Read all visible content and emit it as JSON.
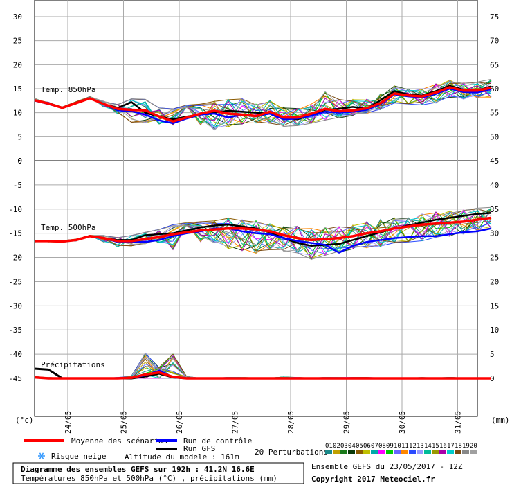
{
  "chart_data": {
    "type": "line",
    "title": "Diagramme des ensembles GEFS sur 192h : 41.2N 16.6E",
    "subtitle": "Températures 850hPa et 500hPa (°C) , précipitations (mm)",
    "x_labels": [
      "24/05",
      "25/05",
      "26/05",
      "27/05",
      "28/05",
      "29/05",
      "30/05",
      "31/05"
    ],
    "left_axis_label": "(°c)",
    "right_axis_label": "(mm)",
    "upper_panel": {
      "label": "Temp. 850hPa",
      "left_ticks": [
        "30",
        "25",
        "20",
        "15",
        "10",
        "5",
        "0"
      ],
      "right_ticks": [
        "75",
        "70",
        "65",
        "60",
        "55",
        "50"
      ],
      "ylim": [
        0,
        30
      ],
      "series": {
        "mean": [
          12.6,
          11.9,
          11.0,
          12.0,
          13.0,
          11.8,
          10.8,
          10.6,
          10.5,
          9.2,
          8.2,
          9.0,
          9.8,
          10.4,
          9.8,
          9.6,
          9.3,
          10.2,
          9.0,
          9.0,
          9.8,
          10.8,
          10.3,
          10.5,
          10.9,
          12.0,
          14.0,
          13.6,
          13.4,
          14.2,
          15.3,
          14.6,
          14.6,
          15.2
        ],
        "control": [
          12.5,
          11.8,
          11.0,
          12.0,
          13.0,
          11.8,
          10.5,
          10.3,
          9.6,
          8.4,
          7.8,
          8.8,
          9.6,
          9.8,
          9.0,
          9.6,
          9.3,
          9.8,
          8.6,
          8.8,
          9.4,
          10.2,
          10.0,
          10.2,
          10.6,
          11.8,
          13.8,
          13.4,
          13.2,
          13.9,
          15.0,
          14.3,
          14.2,
          14.9
        ],
        "gfs": [
          12.6,
          11.9,
          11.0,
          12.0,
          13.0,
          11.8,
          11.0,
          12.2,
          10.0,
          9.2,
          8.6,
          9.2,
          9.6,
          10.0,
          10.4,
          10.2,
          10.0,
          9.8,
          9.0,
          8.6,
          9.6,
          10.6,
          10.8,
          11.2,
          10.8,
          12.6,
          14.5,
          13.8,
          13.6,
          14.5,
          15.6,
          14.8,
          14.6,
          15.5
        ],
        "ensemble_envelope_min": [
          12.4,
          11.7,
          10.9,
          11.8,
          12.8,
          11.2,
          9.8,
          8.0,
          7.8,
          7.6,
          7.4,
          7.8,
          7.4,
          6.4,
          7.0,
          7.6,
          7.8,
          7.8,
          6.8,
          7.2,
          7.8,
          8.4,
          8.8,
          9.2,
          9.8,
          10.6,
          12.0,
          11.8,
          11.6,
          12.0,
          13.2,
          12.8,
          13.0,
          13.2
        ],
        "ensemble_envelope_max": [
          13.0,
          12.2,
          11.2,
          12.3,
          13.4,
          12.4,
          11.8,
          13.0,
          12.8,
          11.0,
          10.8,
          11.6,
          11.8,
          12.4,
          12.8,
          13.0,
          11.8,
          12.6,
          11.2,
          11.0,
          11.8,
          14.4,
          12.8,
          13.0,
          12.8,
          14.0,
          15.6,
          15.2,
          15.0,
          16.0,
          16.8,
          16.2,
          16.4,
          17.0
        ]
      }
    },
    "lower_panel": {
      "label": "Temp. 500hPa",
      "left_ticks": [
        "0",
        "-5",
        "-10",
        "-15",
        "-20",
        "-25",
        "-30",
        "-35",
        "-40",
        "-45"
      ],
      "right_ticks": [
        "45",
        "40",
        "35",
        "30",
        "25",
        "20",
        "15",
        "10",
        "5",
        "0"
      ],
      "ylim": [
        -50,
        0
      ],
      "series": {
        "mean": [
          -16.6,
          -16.6,
          -16.7,
          -16.4,
          -15.6,
          -16.0,
          -16.6,
          -16.6,
          -16.2,
          -15.8,
          -15.2,
          -14.8,
          -14.4,
          -14.2,
          -14.0,
          -14.0,
          -14.2,
          -14.6,
          -15.4,
          -16.0,
          -16.4,
          -16.2,
          -16.0,
          -15.6,
          -15.0,
          -14.6,
          -14.0,
          -13.6,
          -13.2,
          -13.0,
          -12.8,
          -12.6,
          -12.2,
          -11.8
        ],
        "control": [
          -16.6,
          -16.6,
          -16.6,
          -16.4,
          -15.6,
          -16.0,
          -16.8,
          -16.8,
          -16.8,
          -16.4,
          -15.6,
          -15.0,
          -14.6,
          -14.0,
          -14.0,
          -14.6,
          -15.0,
          -15.2,
          -16.0,
          -16.6,
          -17.0,
          -17.4,
          -19.0,
          -17.6,
          -16.8,
          -16.4,
          -16.0,
          -15.8,
          -15.6,
          -15.6,
          -15.2,
          -14.8,
          -14.6,
          -14.0
        ],
        "gfs": [
          -16.6,
          -16.6,
          -16.6,
          -16.4,
          -15.6,
          -16.0,
          -16.4,
          -16.4,
          -15.4,
          -15.2,
          -15.0,
          -14.4,
          -13.8,
          -13.4,
          -13.2,
          -13.6,
          -14.0,
          -14.8,
          -16.0,
          -17.0,
          -17.6,
          -17.4,
          -17.2,
          -16.4,
          -15.6,
          -14.8,
          -14.0,
          -13.4,
          -12.8,
          -12.2,
          -11.8,
          -11.4,
          -11.0,
          -10.8
        ],
        "ensemble_envelope_min": [
          -16.8,
          -16.8,
          -16.9,
          -16.6,
          -15.8,
          -16.8,
          -17.8,
          -17.6,
          -17.2,
          -17.0,
          -18.4,
          -17.6,
          -16.8,
          -17.0,
          -18.2,
          -18.6,
          -19.2,
          -18.4,
          -19.0,
          -19.2,
          -20.4,
          -19.6,
          -19.0,
          -18.6,
          -18.0,
          -17.8,
          -17.0,
          -16.8,
          -16.6,
          -16.0,
          -15.6,
          -15.2,
          -14.6,
          -14.0
        ],
        "ensemble_envelope_max": [
          -16.4,
          -16.4,
          -16.5,
          -16.2,
          -15.4,
          -15.4,
          -15.8,
          -15.4,
          -14.8,
          -14.2,
          -13.2,
          -12.8,
          -12.6,
          -12.4,
          -11.8,
          -12.2,
          -12.4,
          -13.0,
          -13.6,
          -13.4,
          -14.0,
          -13.8,
          -13.6,
          -13.0,
          -12.6,
          -12.0,
          -11.8,
          -11.4,
          -11.0,
          -10.6,
          -10.4,
          -10.2,
          -9.8,
          -9.6
        ]
      },
      "precipitation_label": "Précipitations",
      "precipitation": {
        "mean": [
          0.2,
          0.0,
          0.0,
          0.0,
          0.0,
          0.0,
          0.0,
          0.1,
          0.8,
          1.2,
          0.3,
          0.0,
          0.0,
          0.0,
          0.0,
          0.0,
          0.0,
          0.0,
          0.0,
          0.0,
          0.0,
          0.0,
          0.0,
          0.0,
          0.0,
          0.0,
          0.0,
          0.0,
          0.0,
          0.0,
          0.0,
          0.0,
          0.0,
          0.0
        ],
        "control": [
          0.2,
          0.0,
          0.0,
          0.0,
          0.0,
          0.0,
          0.0,
          0.1,
          0.6,
          1.6,
          0.2,
          0.0,
          0.0,
          0.0,
          0.0,
          0.0,
          0.0,
          0.0,
          0.0,
          0.0,
          0.0,
          0.0,
          0.0,
          0.0,
          0.0,
          0.0,
          0.0,
          0.0,
          0.0,
          0.0,
          0.0,
          0.0,
          0.0,
          0.0
        ],
        "gfs": [
          2.0,
          1.8,
          0.0,
          0.0,
          0.0,
          0.0,
          0.0,
          0.0,
          0.4,
          1.0,
          0.2,
          0.0,
          0.0,
          0.0,
          0.0,
          0.0,
          0.0,
          0.0,
          0.0,
          0.0,
          0.0,
          0.0,
          0.0,
          0.0,
          0.0,
          0.0,
          0.0,
          0.0,
          0.0,
          0.0,
          0.0,
          0.0,
          0.0,
          0.0
        ],
        "ensemble_max": [
          0.4,
          0.2,
          0.1,
          0.1,
          0.0,
          0.0,
          0.2,
          0.5,
          5.2,
          2.6,
          5.0,
          0.4,
          0.1,
          0.1,
          0.2,
          0.2,
          0.1,
          0.1,
          0.3,
          0.2,
          0.1,
          0.2,
          0.2,
          0.2,
          0.2,
          0.1,
          0.1,
          0.1,
          0.2,
          0.1,
          0.2,
          0.1,
          0.1,
          0.1
        ]
      }
    },
    "legend": {
      "mean": "Moyenne des scénarios",
      "control": "Run de contrôle",
      "gfs": "Run GFS",
      "snow": "Risque neige",
      "altitude": "Altitude du modele : 161m",
      "perturbations": "20 Perturbations",
      "perturbation_numbers": [
        "01",
        "02",
        "03",
        "04",
        "05",
        "06",
        "07",
        "08",
        "09",
        "10",
        "11",
        "12",
        "13",
        "14",
        "15",
        "16",
        "17",
        "18",
        "19",
        "20"
      ],
      "perturbation_colors": [
        "#1a8a8a",
        "#c0a000",
        "#1a7a1a",
        "#0a3a0a",
        "#8a5a00",
        "#c0c000",
        "#00aaaa",
        "#ff00ff",
        "#00cc00",
        "#6666ff",
        "#ff8800",
        "#2a4aff",
        "#9999ff",
        "#00bb99",
        "#999900",
        "#aa00aa",
        "#00cccc",
        "#7a4a10",
        "#888888",
        "#a0a0a0"
      ]
    },
    "colors": {
      "mean": "#ff0000",
      "control": "#0000ff",
      "gfs": "#000000"
    }
  },
  "footer": {
    "title_line1": "Diagramme des ensembles GEFS sur 192h : 41.2N 16.6E",
    "title_line2": "Températures 850hPa et 500hPa (°C) , précipitations (mm)",
    "run_info": "Ensemble GEFS du 23/05/2017 - 12Z",
    "copyright": "Copyright 2017 Meteociel.fr"
  }
}
